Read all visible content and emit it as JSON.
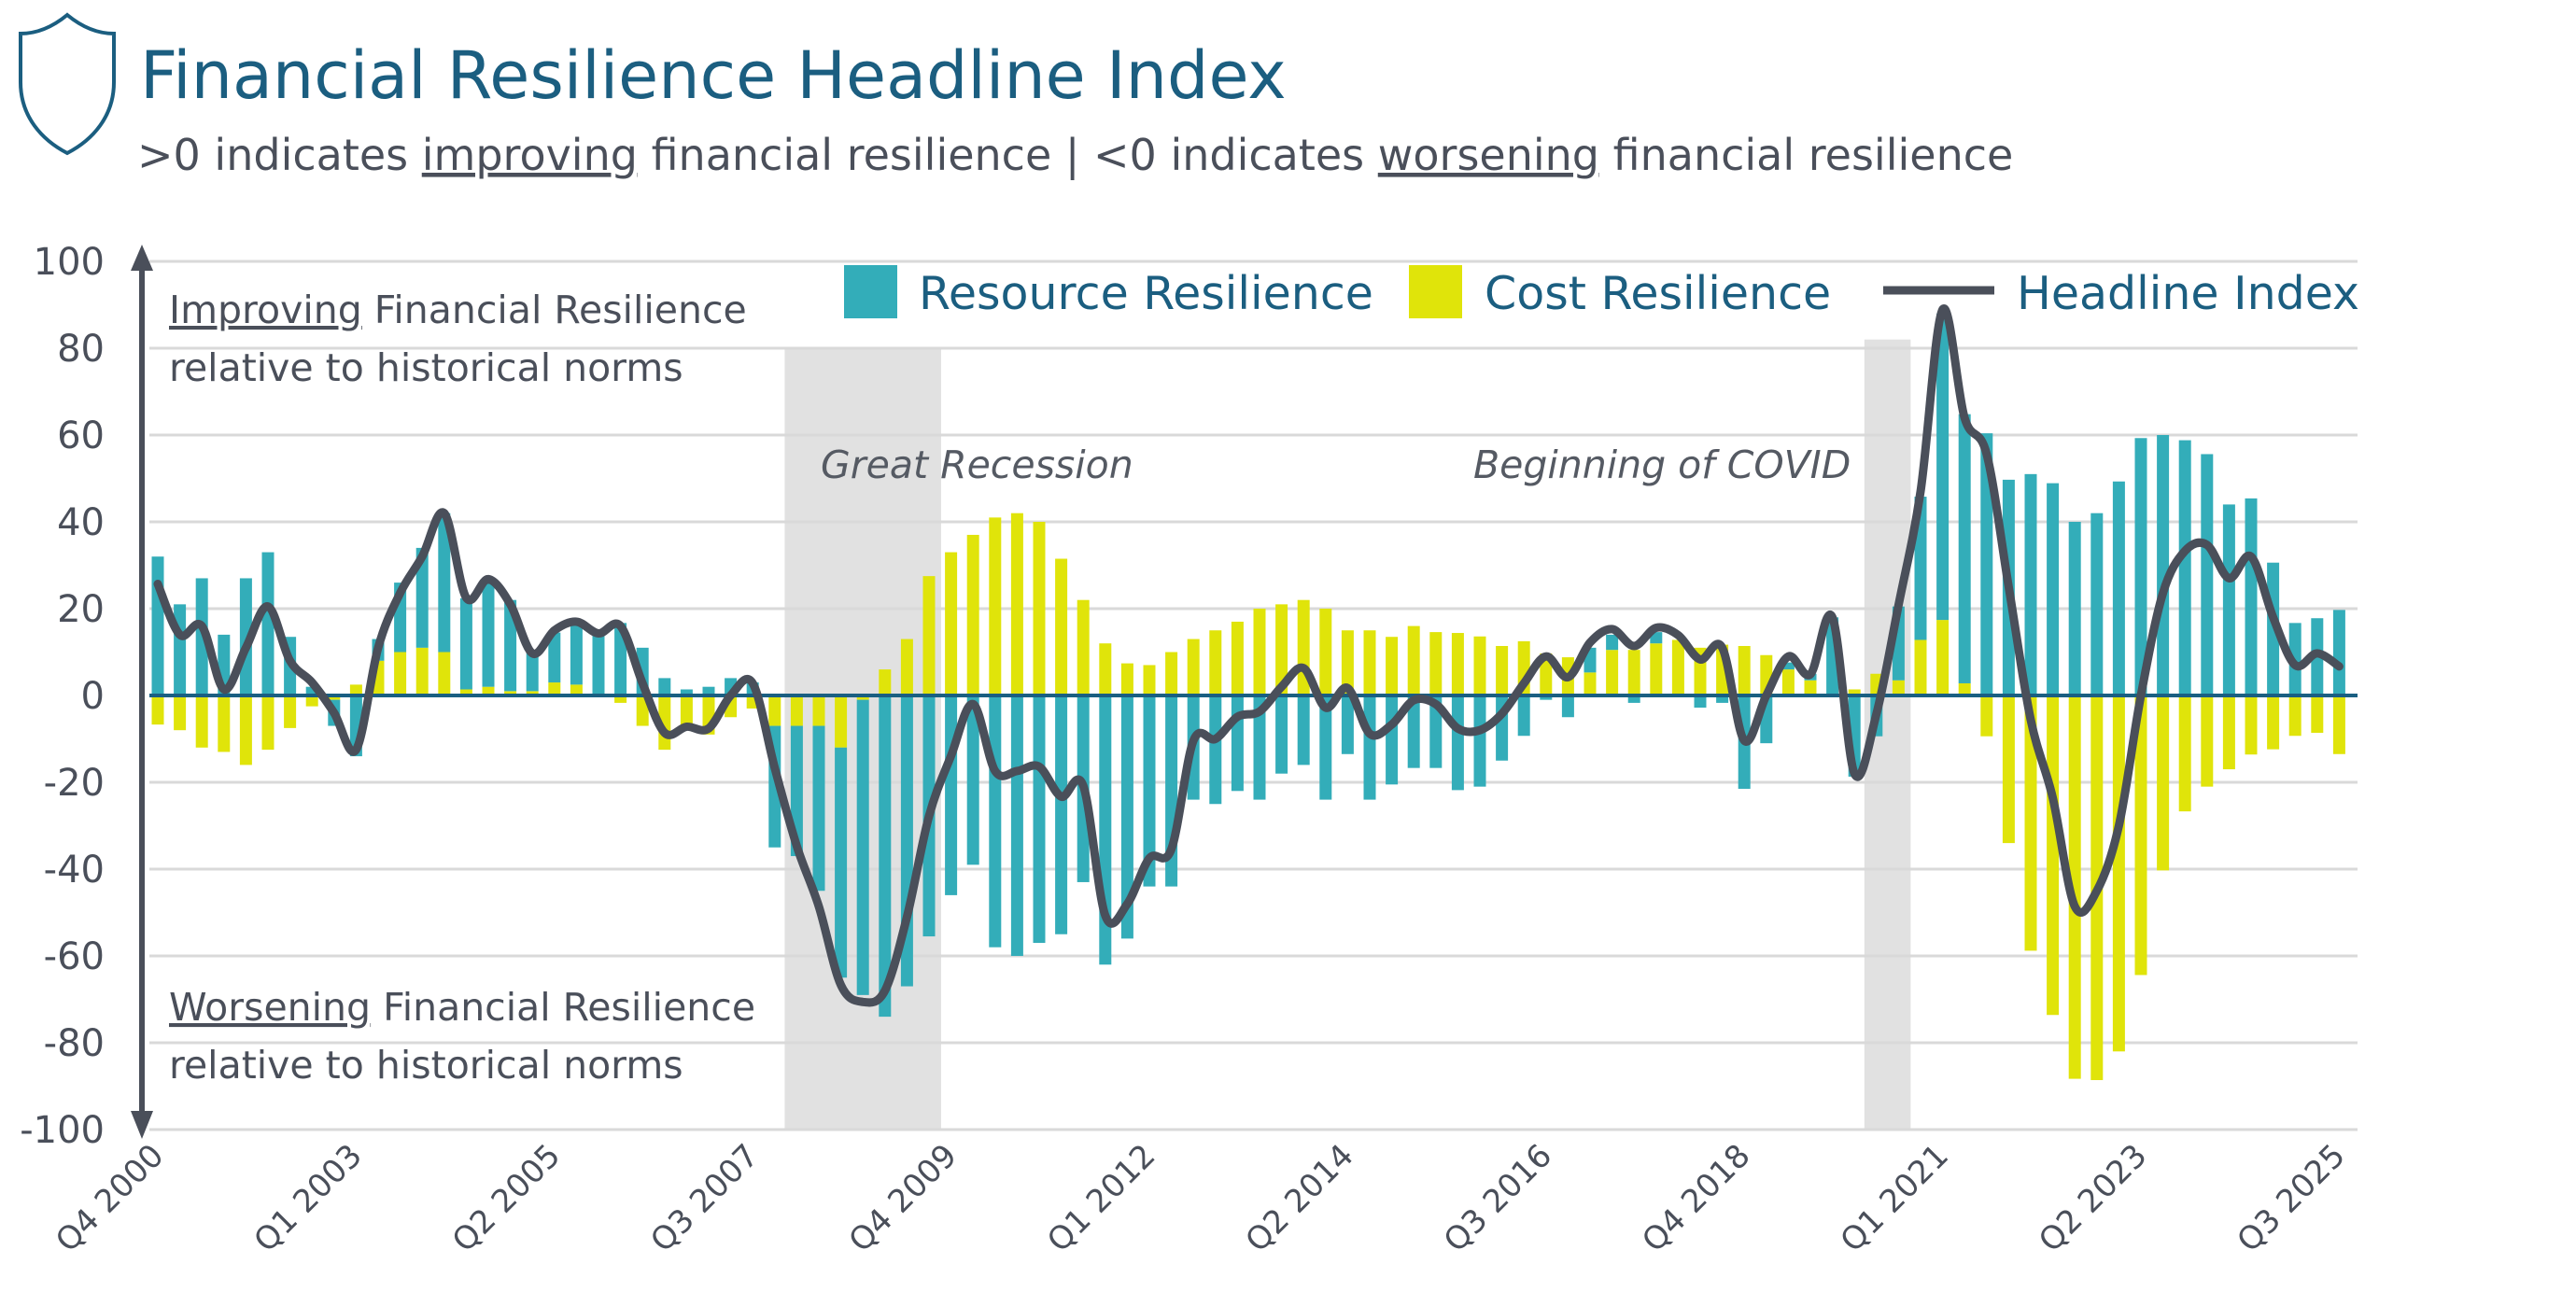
{
  "header": {
    "icon": "shield-icon",
    "title": "Financial Resilience Headline Index",
    "subtitle_parts": [
      ">0 indicates ",
      "improving",
      " financial resilience | <0 indicates ",
      "worsening",
      " financial resilience"
    ]
  },
  "annotations": {
    "improving_word": "Improving",
    "improving_rest": " Financial Resilience",
    "improving_line2": "relative to historical norms",
    "worsening_word": "Worsening",
    "worsening_rest": " Financial Resilience",
    "worsening_line2": "relative to historical norms"
  },
  "colors": {
    "resource": "#33adb9",
    "cost": "#e0e40a",
    "headline": "#4a4f5a",
    "title": "#1b5e80",
    "zero_line": "#1a5f82",
    "shade": "#e1e1e1",
    "grid": "#d9d9d9"
  },
  "chart_data": {
    "type": "bar+line",
    "title": "Financial Resilience Headline Index",
    "xlabel": "",
    "ylabel": "",
    "ylim": [
      -100,
      100
    ],
    "yticks": [
      100,
      80,
      60,
      40,
      20,
      0,
      -20,
      -40,
      -60,
      -80,
      -100
    ],
    "grid": true,
    "legend_position": "top",
    "bar_mode": "stacked",
    "x_tick_labels": [
      "Q4 2000",
      "Q1 2003",
      "Q2 2005",
      "Q3 2007",
      "Q4 2009",
      "Q1 2012",
      "Q2 2014",
      "Q3 2016",
      "Q4 2018",
      "Q1 2021",
      "Q2 2023",
      "Q3 2025"
    ],
    "categories": [
      "Q4 2000",
      "Q1 2001",
      "Q2 2001",
      "Q3 2001",
      "Q4 2001",
      "Q1 2002",
      "Q2 2002",
      "Q3 2002",
      "Q4 2002",
      "Q1 2003",
      "Q2 2003",
      "Q3 2003",
      "Q4 2003",
      "Q1 2004",
      "Q2 2004",
      "Q3 2004",
      "Q4 2004",
      "Q1 2005",
      "Q2 2005",
      "Q3 2005",
      "Q4 2005",
      "Q1 2006",
      "Q2 2006",
      "Q3 2006",
      "Q4 2006",
      "Q1 2007",
      "Q2 2007",
      "Q3 2007",
      "Q4 2007",
      "Q1 2008",
      "Q2 2008",
      "Q3 2008",
      "Q4 2008",
      "Q1 2009",
      "Q2 2009",
      "Q3 2009",
      "Q4 2009",
      "Q1 2010",
      "Q2 2010",
      "Q3 2010",
      "Q4 2010",
      "Q1 2011",
      "Q2 2011",
      "Q3 2011",
      "Q4 2011",
      "Q1 2012",
      "Q2 2012",
      "Q3 2012",
      "Q4 2012",
      "Q1 2013",
      "Q2 2013",
      "Q3 2013",
      "Q4 2013",
      "Q1 2014",
      "Q2 2014",
      "Q3 2014",
      "Q4 2014",
      "Q1 2015",
      "Q2 2015",
      "Q3 2015",
      "Q4 2015",
      "Q1 2016",
      "Q2 2016",
      "Q3 2016",
      "Q4 2016",
      "Q1 2017",
      "Q2 2017",
      "Q3 2017",
      "Q4 2017",
      "Q1 2018",
      "Q2 2018",
      "Q3 2018",
      "Q4 2018",
      "Q1 2019",
      "Q2 2019",
      "Q3 2019",
      "Q4 2019",
      "Q1 2020",
      "Q2 2020",
      "Q3 2020",
      "Q4 2020",
      "Q1 2021",
      "Q2 2021",
      "Q3 2021",
      "Q4 2021",
      "Q1 2022",
      "Q2 2022",
      "Q3 2022",
      "Q4 2022",
      "Q1 2023",
      "Q2 2023",
      "Q3 2023",
      "Q4 2023",
      "Q1 2024",
      "Q2 2024",
      "Q3 2024",
      "Q4 2024",
      "Q1 2025",
      "Q2 2025",
      "Q3 2025"
    ],
    "series": [
      {
        "name": "Resource Resilience",
        "type": "bar",
        "values": [
          32,
          21,
          27,
          14,
          27,
          33,
          13.5,
          2,
          -6,
          -14,
          5,
          16,
          23,
          32,
          21,
          24,
          21,
          9,
          11.5,
          14,
          15,
          16.7,
          11,
          4,
          1.4,
          2,
          4,
          3,
          -28,
          -30,
          -38,
          -53,
          -68,
          -74,
          -67,
          -55.5,
          -46,
          -39,
          -58,
          -60,
          -57,
          -55,
          -43,
          -62,
          -56,
          -44,
          -44,
          -24,
          -25,
          -22,
          -24,
          -18,
          -16,
          -24,
          -13.5,
          -24,
          -20.5,
          -16.7,
          -16.7,
          -21.8,
          -21,
          -15,
          -9.3,
          -1,
          -5,
          5.7,
          3.5,
          -1.7,
          2.6,
          0,
          -2.8,
          -1.7,
          -21.5,
          -11,
          1.6,
          1.5,
          18,
          -18.7,
          -9.4,
          17,
          33,
          70.6,
          62,
          60.4,
          49.7,
          51,
          48.9,
          40,
          42,
          49.3,
          59.3,
          60,
          58.8,
          55.6,
          44,
          45.4,
          30.6,
          16.7,
          17.8,
          19.7
        ]
      },
      {
        "name": "Cost Resilience",
        "type": "bar",
        "values": [
          -6.7,
          -8,
          -12,
          -13,
          -16,
          -12.5,
          -7.5,
          -2.5,
          -1,
          2.5,
          8,
          10,
          11,
          10,
          1.4,
          2,
          1,
          1,
          3,
          2.5,
          0,
          -1.7,
          -7,
          -12.5,
          -8,
          -9,
          -5,
          -3,
          -7,
          -7,
          -7,
          -12,
          -1,
          6,
          13,
          27.5,
          33,
          37,
          41,
          42,
          40,
          31.5,
          22,
          12,
          7.4,
          7,
          10,
          13,
          15,
          17,
          20,
          21,
          22,
          20,
          15,
          15,
          13.5,
          16,
          14.6,
          14.4,
          13.6,
          11.4,
          12.5,
          9.7,
          8.8,
          5.3,
          10.5,
          10.5,
          12,
          12.8,
          11,
          11.7,
          11.4,
          9.3,
          6,
          3.5,
          0,
          1.4,
          5,
          3.5,
          12.8,
          17.4,
          2.8,
          -9.4,
          -34,
          -58.8,
          -73.6,
          -88.3,
          -88.6,
          -82,
          -64.4,
          -40.3,
          -26.7,
          -21,
          -17,
          -13.6,
          -12.4,
          -9.3,
          -8.6,
          -13.5
        ]
      },
      {
        "name": "Headline Index",
        "type": "line",
        "values": [
          25.7,
          14,
          16,
          1.4,
          11,
          20.5,
          8,
          3,
          -4,
          -12.5,
          11,
          23.6,
          32,
          42,
          22.5,
          26.8,
          21,
          9.7,
          15,
          17,
          14.3,
          16,
          2.8,
          -8.6,
          -7.2,
          -7.6,
          0,
          2.8,
          -16.7,
          -34.7,
          -48.6,
          -66.7,
          -70.6,
          -68,
          -51,
          -27.8,
          -13.9,
          -2,
          -17.4,
          -17.4,
          -16.4,
          -23.3,
          -20.8,
          -50.7,
          -48,
          -37.5,
          -35.4,
          -10.4,
          -10,
          -4.9,
          -3.7,
          2,
          6.3,
          -2.8,
          1.7,
          -8.8,
          -6.7,
          -1.1,
          -2,
          -7.6,
          -8,
          -4.2,
          2.8,
          9,
          4.2,
          12.2,
          15.3,
          11.4,
          15.6,
          13.9,
          8.3,
          11,
          -10.4,
          0,
          9,
          4.9,
          18,
          -18,
          -4.2,
          20.8,
          47,
          88.9,
          63.9,
          55.6,
          25,
          -5.6,
          -23.6,
          -48.6,
          -45,
          -30,
          0,
          23.6,
          33.3,
          34.7,
          27,
          32,
          18,
          7,
          9.7,
          6.7
        ]
      }
    ],
    "shaded_periods": [
      {
        "label": "Great Recession",
        "start": "Q1 2008",
        "end": "Q3 2009"
      },
      {
        "label": "Beginning of COVID",
        "start": "Q2 2020",
        "end": "Q3 2020"
      }
    ]
  }
}
